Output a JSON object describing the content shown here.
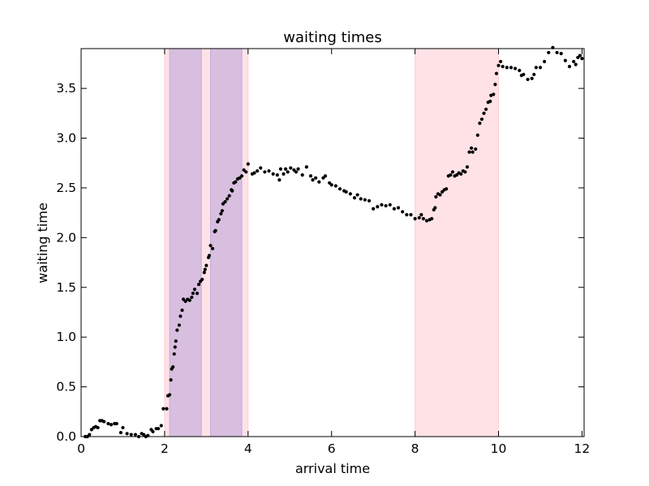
{
  "chart_data": {
    "type": "scatter",
    "title": "waiting times",
    "xlabel": "arrival time",
    "ylabel": "waiting time",
    "xlim": [
      0,
      12.05
    ],
    "ylim": [
      0,
      3.9
    ],
    "x_ticks": [
      "0",
      "2",
      "4",
      "6",
      "8",
      "10",
      "12"
    ],
    "x_tick_values": [
      0,
      2,
      4,
      6,
      8,
      10,
      12
    ],
    "y_ticks": [
      "0.0",
      "0.5",
      "1.0",
      "1.5",
      "2.0",
      "2.5",
      "3.0",
      "3.5"
    ],
    "y_tick_values": [
      0,
      0.5,
      1.0,
      1.5,
      2.0,
      2.5,
      3.0,
      3.5
    ],
    "grid": false,
    "shaded_regions": [
      {
        "x": [
          2.0,
          4.0
        ],
        "color": "#ffb6c1",
        "opacity": 0.4
      },
      {
        "x": [
          8.0,
          10.0
        ],
        "color": "#ffb6c1",
        "opacity": 0.4
      },
      {
        "x": [
          2.12,
          2.88
        ],
        "color": "#b19cd9",
        "opacity": 0.5
      },
      {
        "x": [
          3.1,
          3.85
        ],
        "color": "#b19cd9",
        "opacity": 0.5
      }
    ],
    "marker_color": "#000000",
    "points": [
      [
        0.1,
        0.0
      ],
      [
        0.15,
        0.0
      ],
      [
        0.2,
        0.02
      ],
      [
        0.25,
        0.07
      ],
      [
        0.3,
        0.09
      ],
      [
        0.35,
        0.1
      ],
      [
        0.4,
        0.09
      ],
      [
        0.45,
        0.16
      ],
      [
        0.5,
        0.16
      ],
      [
        0.55,
        0.15
      ],
      [
        0.65,
        0.13
      ],
      [
        0.72,
        0.12
      ],
      [
        0.8,
        0.13
      ],
      [
        0.85,
        0.13
      ],
      [
        0.95,
        0.04
      ],
      [
        1.0,
        0.09
      ],
      [
        1.1,
        0.03
      ],
      [
        1.2,
        0.02
      ],
      [
        1.3,
        0.02
      ],
      [
        1.38,
        0.0
      ],
      [
        1.45,
        0.03
      ],
      [
        1.5,
        0.02
      ],
      [
        1.55,
        0.0
      ],
      [
        1.6,
        0.01
      ],
      [
        1.68,
        0.07
      ],
      [
        1.72,
        0.05
      ],
      [
        1.8,
        0.08
      ],
      [
        1.85,
        0.08
      ],
      [
        1.92,
        0.11
      ],
      [
        1.97,
        0.28
      ],
      [
        2.05,
        0.28
      ],
      [
        2.08,
        0.41
      ],
      [
        2.12,
        0.42
      ],
      [
        2.15,
        0.57
      ],
      [
        2.17,
        0.68
      ],
      [
        2.2,
        0.7
      ],
      [
        2.23,
        0.83
      ],
      [
        2.25,
        0.9
      ],
      [
        2.27,
        0.96
      ],
      [
        2.3,
        1.07
      ],
      [
        2.35,
        1.12
      ],
      [
        2.38,
        1.21
      ],
      [
        2.42,
        1.27
      ],
      [
        2.45,
        1.38
      ],
      [
        2.5,
        1.36
      ],
      [
        2.55,
        1.38
      ],
      [
        2.6,
        1.37
      ],
      [
        2.65,
        1.4
      ],
      [
        2.68,
        1.44
      ],
      [
        2.72,
        1.48
      ],
      [
        2.78,
        1.44
      ],
      [
        2.82,
        1.53
      ],
      [
        2.86,
        1.56
      ],
      [
        2.9,
        1.58
      ],
      [
        2.95,
        1.65
      ],
      [
        2.97,
        1.68
      ],
      [
        3.0,
        1.72
      ],
      [
        3.05,
        1.8
      ],
      [
        3.07,
        1.82
      ],
      [
        3.1,
        1.92
      ],
      [
        3.15,
        1.89
      ],
      [
        3.2,
        2.06
      ],
      [
        3.22,
        2.07
      ],
      [
        3.27,
        2.16
      ],
      [
        3.3,
        2.18
      ],
      [
        3.35,
        2.24
      ],
      [
        3.38,
        2.27
      ],
      [
        3.4,
        2.34
      ],
      [
        3.45,
        2.36
      ],
      [
        3.5,
        2.39
      ],
      [
        3.55,
        2.42
      ],
      [
        3.6,
        2.48
      ],
      [
        3.62,
        2.47
      ],
      [
        3.66,
        2.55
      ],
      [
        3.7,
        2.56
      ],
      [
        3.75,
        2.59
      ],
      [
        3.8,
        2.6
      ],
      [
        3.85,
        2.62
      ],
      [
        3.9,
        2.68
      ],
      [
        3.95,
        2.66
      ],
      [
        4.0,
        2.74
      ],
      [
        4.1,
        2.64
      ],
      [
        4.15,
        2.65
      ],
      [
        4.22,
        2.67
      ],
      [
        4.3,
        2.7
      ],
      [
        4.4,
        2.66
      ],
      [
        4.5,
        2.67
      ],
      [
        4.6,
        2.64
      ],
      [
        4.7,
        2.63
      ],
      [
        4.75,
        2.58
      ],
      [
        4.78,
        2.69
      ],
      [
        4.85,
        2.64
      ],
      [
        4.9,
        2.69
      ],
      [
        4.95,
        2.66
      ],
      [
        5.02,
        2.7
      ],
      [
        5.1,
        2.68
      ],
      [
        5.15,
        2.66
      ],
      [
        5.2,
        2.69
      ],
      [
        5.3,
        2.63
      ],
      [
        5.4,
        2.71
      ],
      [
        5.5,
        2.62
      ],
      [
        5.55,
        2.58
      ],
      [
        5.62,
        2.6
      ],
      [
        5.7,
        2.56
      ],
      [
        5.8,
        2.6
      ],
      [
        5.85,
        2.62
      ],
      [
        5.95,
        2.55
      ],
      [
        6.0,
        2.53
      ],
      [
        6.1,
        2.52
      ],
      [
        6.2,
        2.49
      ],
      [
        6.3,
        2.47
      ],
      [
        6.35,
        2.46
      ],
      [
        6.45,
        2.44
      ],
      [
        6.55,
        2.4
      ],
      [
        6.62,
        2.43
      ],
      [
        6.7,
        2.39
      ],
      [
        6.8,
        2.38
      ],
      [
        6.9,
        2.37
      ],
      [
        7.0,
        2.29
      ],
      [
        7.1,
        2.31
      ],
      [
        7.2,
        2.33
      ],
      [
        7.3,
        2.32
      ],
      [
        7.4,
        2.33
      ],
      [
        7.5,
        2.29
      ],
      [
        7.6,
        2.3
      ],
      [
        7.7,
        2.26
      ],
      [
        7.8,
        2.23
      ],
      [
        7.9,
        2.23
      ],
      [
        8.0,
        2.19
      ],
      [
        8.1,
        2.2
      ],
      [
        8.15,
        2.23
      ],
      [
        8.2,
        2.19
      ],
      [
        8.28,
        2.17
      ],
      [
        8.35,
        2.18
      ],
      [
        8.4,
        2.19
      ],
      [
        8.45,
        2.28
      ],
      [
        8.48,
        2.3
      ],
      [
        8.5,
        2.41
      ],
      [
        8.55,
        2.44
      ],
      [
        8.6,
        2.43
      ],
      [
        8.65,
        2.46
      ],
      [
        8.7,
        2.48
      ],
      [
        8.75,
        2.49
      ],
      [
        8.8,
        2.62
      ],
      [
        8.85,
        2.63
      ],
      [
        8.9,
        2.66
      ],
      [
        8.95,
        2.62
      ],
      [
        9.0,
        2.63
      ],
      [
        9.05,
        2.65
      ],
      [
        9.1,
        2.64
      ],
      [
        9.15,
        2.67
      ],
      [
        9.2,
        2.66
      ],
      [
        9.25,
        2.71
      ],
      [
        9.3,
        2.86
      ],
      [
        9.35,
        2.9
      ],
      [
        9.38,
        2.86
      ],
      [
        9.45,
        2.89
      ],
      [
        9.5,
        3.03
      ],
      [
        9.55,
        3.15
      ],
      [
        9.6,
        3.19
      ],
      [
        9.65,
        3.25
      ],
      [
        9.7,
        3.29
      ],
      [
        9.75,
        3.36
      ],
      [
        9.8,
        3.37
      ],
      [
        9.82,
        3.43
      ],
      [
        9.88,
        3.44
      ],
      [
        9.92,
        3.54
      ],
      [
        9.95,
        3.65
      ],
      [
        10.0,
        3.73
      ],
      [
        10.05,
        3.77
      ],
      [
        10.1,
        3.72
      ],
      [
        10.2,
        3.71
      ],
      [
        10.3,
        3.71
      ],
      [
        10.4,
        3.7
      ],
      [
        10.5,
        3.68
      ],
      [
        10.55,
        3.63
      ],
      [
        10.6,
        3.64
      ],
      [
        10.7,
        3.59
      ],
      [
        10.8,
        3.6
      ],
      [
        10.85,
        3.64
      ],
      [
        10.9,
        3.71
      ],
      [
        11.0,
        3.71
      ],
      [
        11.1,
        3.77
      ],
      [
        11.2,
        3.86
      ],
      [
        11.3,
        3.91
      ],
      [
        11.4,
        3.86
      ],
      [
        11.5,
        3.85
      ],
      [
        11.6,
        3.78
      ],
      [
        11.7,
        3.72
      ],
      [
        11.8,
        3.77
      ],
      [
        11.85,
        3.74
      ],
      [
        11.9,
        3.81
      ],
      [
        11.95,
        3.83
      ],
      [
        12.0,
        3.8
      ]
    ]
  }
}
